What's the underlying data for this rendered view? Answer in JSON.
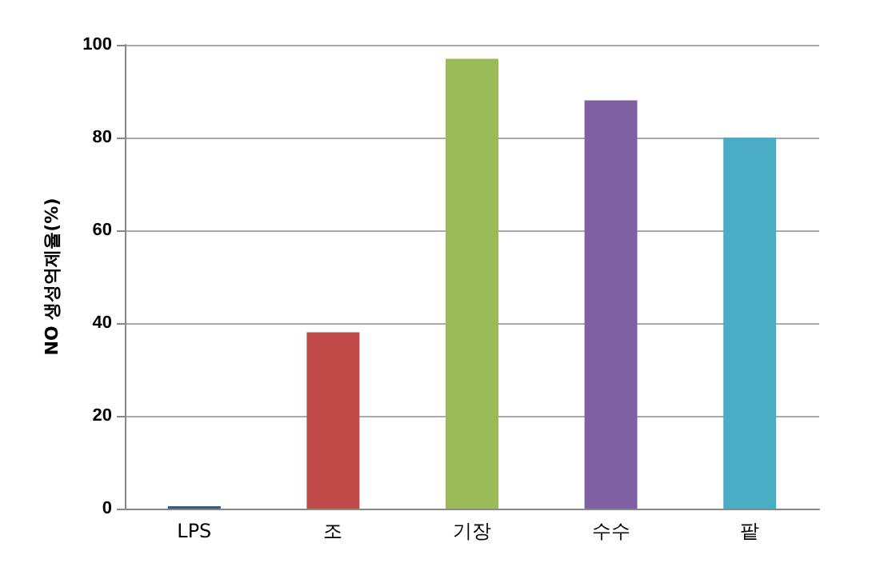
{
  "chart_data": {
    "type": "bar",
    "ylabel": "NO 생성억제율(%)",
    "categories": [
      "LPS",
      "조",
      "기장",
      "수수",
      "팥"
    ],
    "values": [
      0.5,
      38,
      97,
      88,
      80
    ],
    "colors": [
      "#2e5a8e",
      "#be4b48",
      "#9bbb59",
      "#7f60a2",
      "#4bacc6"
    ],
    "ylim": [
      0,
      100
    ],
    "yticks": [
      0,
      20,
      40,
      60,
      80,
      100
    ],
    "grid": "y"
  }
}
